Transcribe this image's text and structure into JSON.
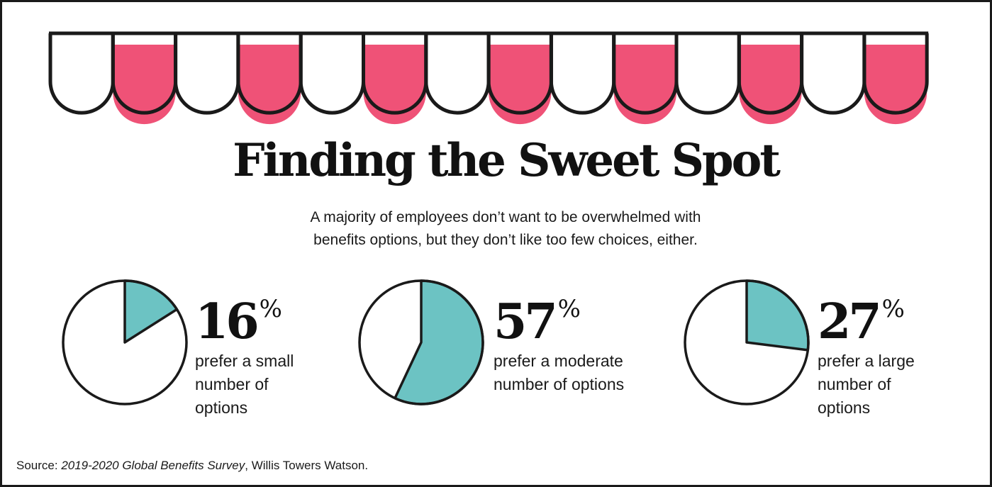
{
  "title": "Finding the Sweet Spot",
  "subtitle_line1": "A majority of employees don’t want to be overwhelmed with",
  "subtitle_line2": "benefits options, but they don’t like too few choices, either.",
  "colors": {
    "awning_pink": "#ef5277",
    "slice_teal": "#6cc3c3",
    "outline": "#1a1a1a"
  },
  "chart_data": [
    {
      "type": "pie",
      "values": [
        16,
        84
      ],
      "value_label": "16",
      "unit": "%",
      "label_lines": [
        "prefer a small",
        "number of",
        "options"
      ]
    },
    {
      "type": "pie",
      "values": [
        57,
        43
      ],
      "value_label": "57",
      "unit": "%",
      "label_lines": [
        "prefer a moderate",
        "number of options"
      ]
    },
    {
      "type": "pie",
      "values": [
        27,
        73
      ],
      "value_label": "27",
      "unit": "%",
      "label_lines": [
        "prefer a large",
        "number of",
        "options"
      ]
    }
  ],
  "source": {
    "prefix": "Source: ",
    "survey": "2019-2020 Global Benefits Survey",
    "suffix": ", Willis Towers Watson."
  }
}
